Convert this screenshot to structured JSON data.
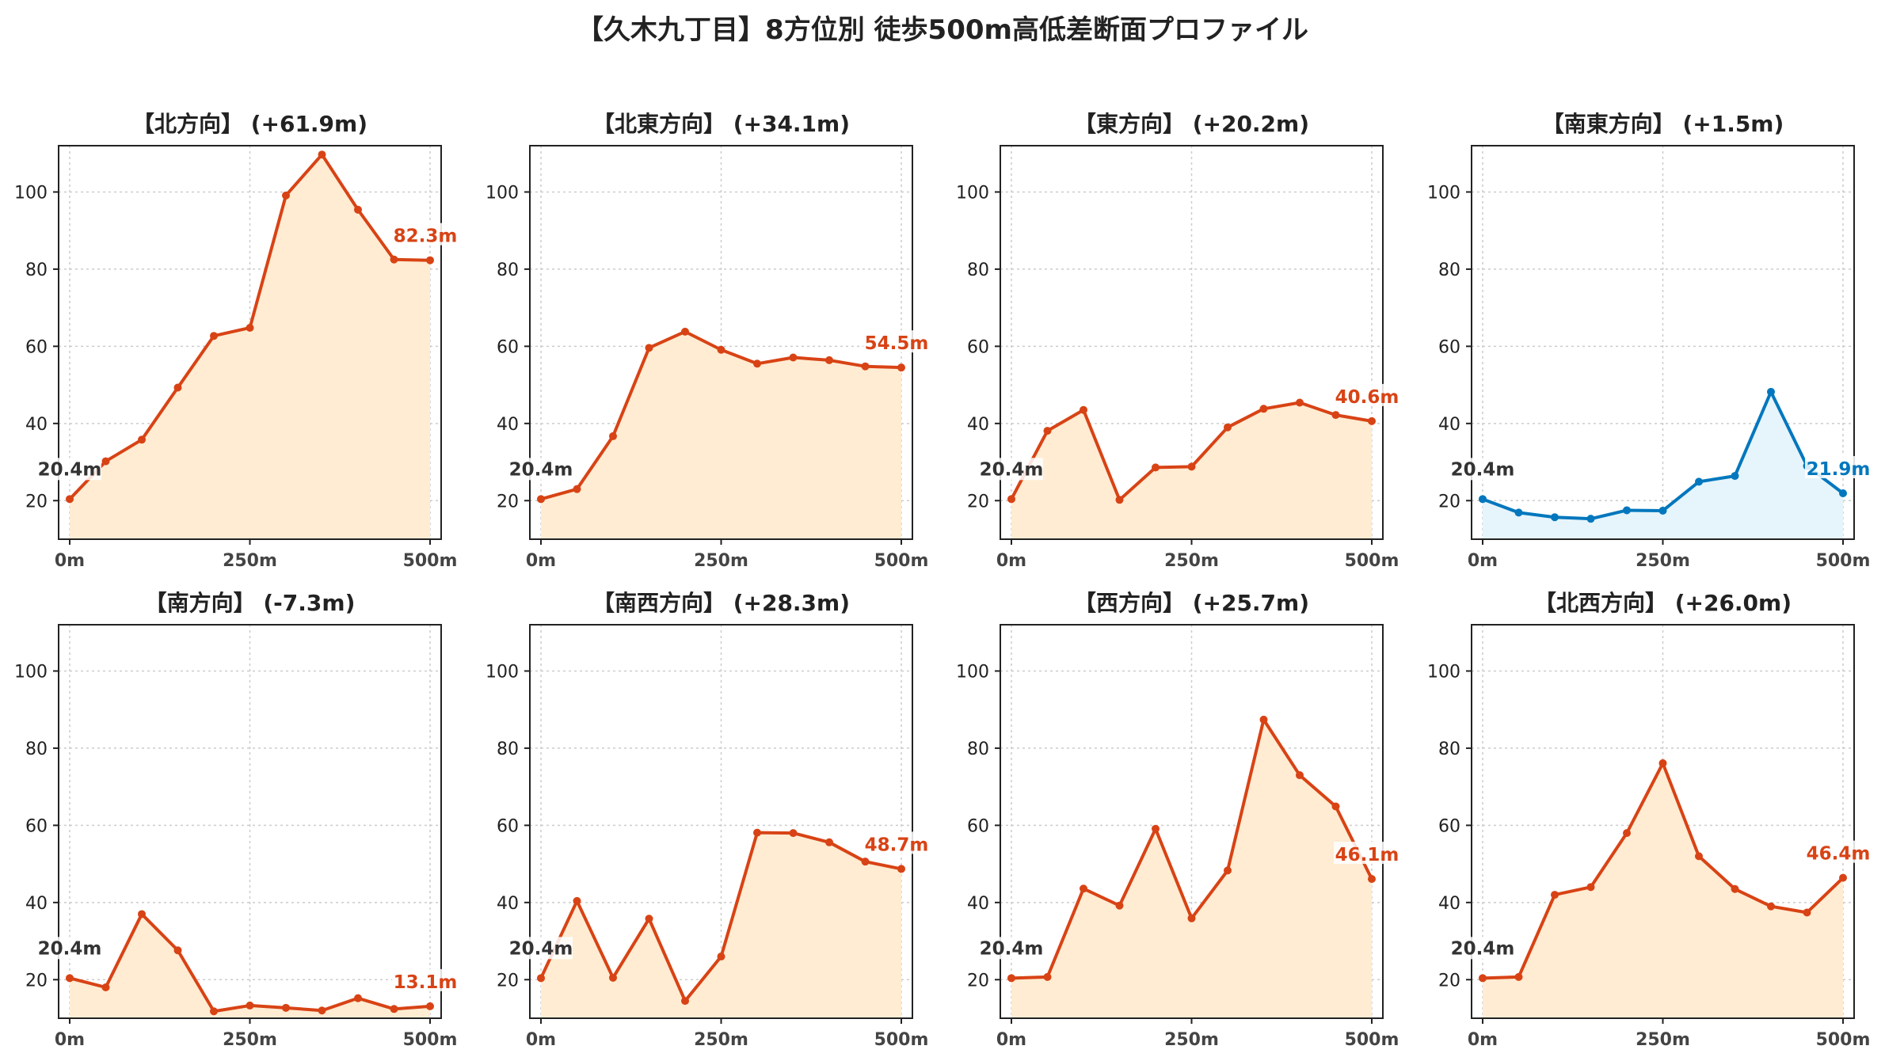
{
  "title": "【久木九丁目】8方位別 徒歩500m高低差断面プロファイル",
  "colors": {
    "up_line": "#d84315",
    "up_fill": "#ffecd2",
    "down_line": "#0277bd",
    "down_fill": "#e6f4fb",
    "start_label": "#333333",
    "grid": "#cccccc"
  },
  "chart_data": [
    {
      "type": "area",
      "title": "【北方向】 (+61.9m)",
      "x": [
        0,
        50,
        100,
        150,
        200,
        250,
        300,
        350,
        400,
        450,
        500
      ],
      "values": [
        20.4,
        30.2,
        35.8,
        49.3,
        62.7,
        64.8,
        99.1,
        109.7,
        95.4,
        82.5,
        82.3
      ],
      "start_label": "20.4m",
      "end_label": "82.3m",
      "xlim": [
        0,
        500
      ],
      "ylim": [
        10,
        112
      ],
      "xticks": [
        "0m",
        "250m",
        "500m"
      ],
      "yticks": [
        20,
        40,
        60,
        80,
        100
      ],
      "grid": true,
      "trend": "up"
    },
    {
      "type": "area",
      "title": "【北東方向】 (+34.1m)",
      "x": [
        0,
        50,
        100,
        150,
        200,
        250,
        300,
        350,
        400,
        450,
        500
      ],
      "values": [
        20.4,
        23.0,
        36.7,
        59.6,
        63.8,
        59.1,
        55.5,
        57.1,
        56.4,
        54.8,
        54.5
      ],
      "start_label": "20.4m",
      "end_label": "54.5m",
      "xlim": [
        0,
        500
      ],
      "ylim": [
        10,
        112
      ],
      "xticks": [
        "0m",
        "250m",
        "500m"
      ],
      "yticks": [
        20,
        40,
        60,
        80,
        100
      ],
      "grid": true,
      "trend": "up"
    },
    {
      "type": "area",
      "title": "【東方向】 (+20.2m)",
      "x": [
        0,
        50,
        100,
        150,
        200,
        250,
        300,
        350,
        400,
        450,
        500
      ],
      "values": [
        20.4,
        38.1,
        43.5,
        20.2,
        28.6,
        28.8,
        39.0,
        43.8,
        45.4,
        42.2,
        40.6
      ],
      "start_label": "20.4m",
      "end_label": "40.6m",
      "xlim": [
        0,
        500
      ],
      "ylim": [
        10,
        112
      ],
      "xticks": [
        "0m",
        "250m",
        "500m"
      ],
      "yticks": [
        20,
        40,
        60,
        80,
        100
      ],
      "grid": true,
      "trend": "up"
    },
    {
      "type": "area",
      "title": "【南東方向】 (+1.5m)",
      "x": [
        0,
        50,
        100,
        150,
        200,
        250,
        300,
        350,
        400,
        450,
        500
      ],
      "values": [
        20.4,
        16.9,
        15.7,
        15.3,
        17.5,
        17.4,
        24.9,
        26.4,
        48.2,
        29.0,
        21.9
      ],
      "start_label": "20.4m",
      "end_label": "21.9m",
      "xlim": [
        0,
        500
      ],
      "ylim": [
        10,
        112
      ],
      "xticks": [
        "0m",
        "250m",
        "500m"
      ],
      "yticks": [
        20,
        40,
        60,
        80,
        100
      ],
      "grid": true,
      "trend": "flat"
    },
    {
      "type": "area",
      "title": "【南方向】 (-7.3m)",
      "x": [
        0,
        50,
        100,
        150,
        200,
        250,
        300,
        350,
        400,
        450,
        500
      ],
      "values": [
        20.4,
        18.0,
        37.0,
        27.6,
        11.8,
        13.3,
        12.7,
        12.0,
        15.2,
        12.4,
        13.1
      ],
      "start_label": "20.4m",
      "end_label": "13.1m",
      "xlim": [
        0,
        500
      ],
      "ylim": [
        10,
        112
      ],
      "xticks": [
        "0m",
        "250m",
        "500m"
      ],
      "yticks": [
        20,
        40,
        60,
        80,
        100
      ],
      "grid": true,
      "trend": "down"
    },
    {
      "type": "area",
      "title": "【南西方向】 (+28.3m)",
      "x": [
        0,
        50,
        100,
        150,
        200,
        250,
        300,
        350,
        400,
        450,
        500
      ],
      "values": [
        20.4,
        40.4,
        20.5,
        35.8,
        14.5,
        26.0,
        58.1,
        58.0,
        55.6,
        50.6,
        48.7
      ],
      "start_label": "20.4m",
      "end_label": "48.7m",
      "xlim": [
        0,
        500
      ],
      "ylim": [
        10,
        112
      ],
      "xticks": [
        "0m",
        "250m",
        "500m"
      ],
      "yticks": [
        20,
        40,
        60,
        80,
        100
      ],
      "grid": true,
      "trend": "up"
    },
    {
      "type": "area",
      "title": "【西方向】 (+25.7m)",
      "x": [
        0,
        50,
        100,
        150,
        200,
        250,
        300,
        350,
        400,
        450,
        500
      ],
      "values": [
        20.4,
        20.7,
        43.6,
        39.2,
        59.1,
        35.9,
        48.3,
        87.4,
        73.0,
        64.9,
        46.1
      ],
      "start_label": "20.4m",
      "end_label": "46.1m",
      "xlim": [
        0,
        500
      ],
      "ylim": [
        10,
        112
      ],
      "xticks": [
        "0m",
        "250m",
        "500m"
      ],
      "yticks": [
        20,
        40,
        60,
        80,
        100
      ],
      "grid": true,
      "trend": "up"
    },
    {
      "type": "area",
      "title": "【北西方向】 (+26.0m)",
      "x": [
        0,
        50,
        100,
        150,
        200,
        250,
        300,
        350,
        400,
        450,
        500
      ],
      "values": [
        20.4,
        20.7,
        42.0,
        44.0,
        58.0,
        76.1,
        52.0,
        43.5,
        39.0,
        37.4,
        46.4
      ],
      "start_label": "20.4m",
      "end_label": "46.4m",
      "xlim": [
        0,
        500
      ],
      "ylim": [
        10,
        112
      ],
      "xticks": [
        "0m",
        "250m",
        "500m"
      ],
      "yticks": [
        20,
        40,
        60,
        80,
        100
      ],
      "grid": true,
      "trend": "up"
    }
  ]
}
